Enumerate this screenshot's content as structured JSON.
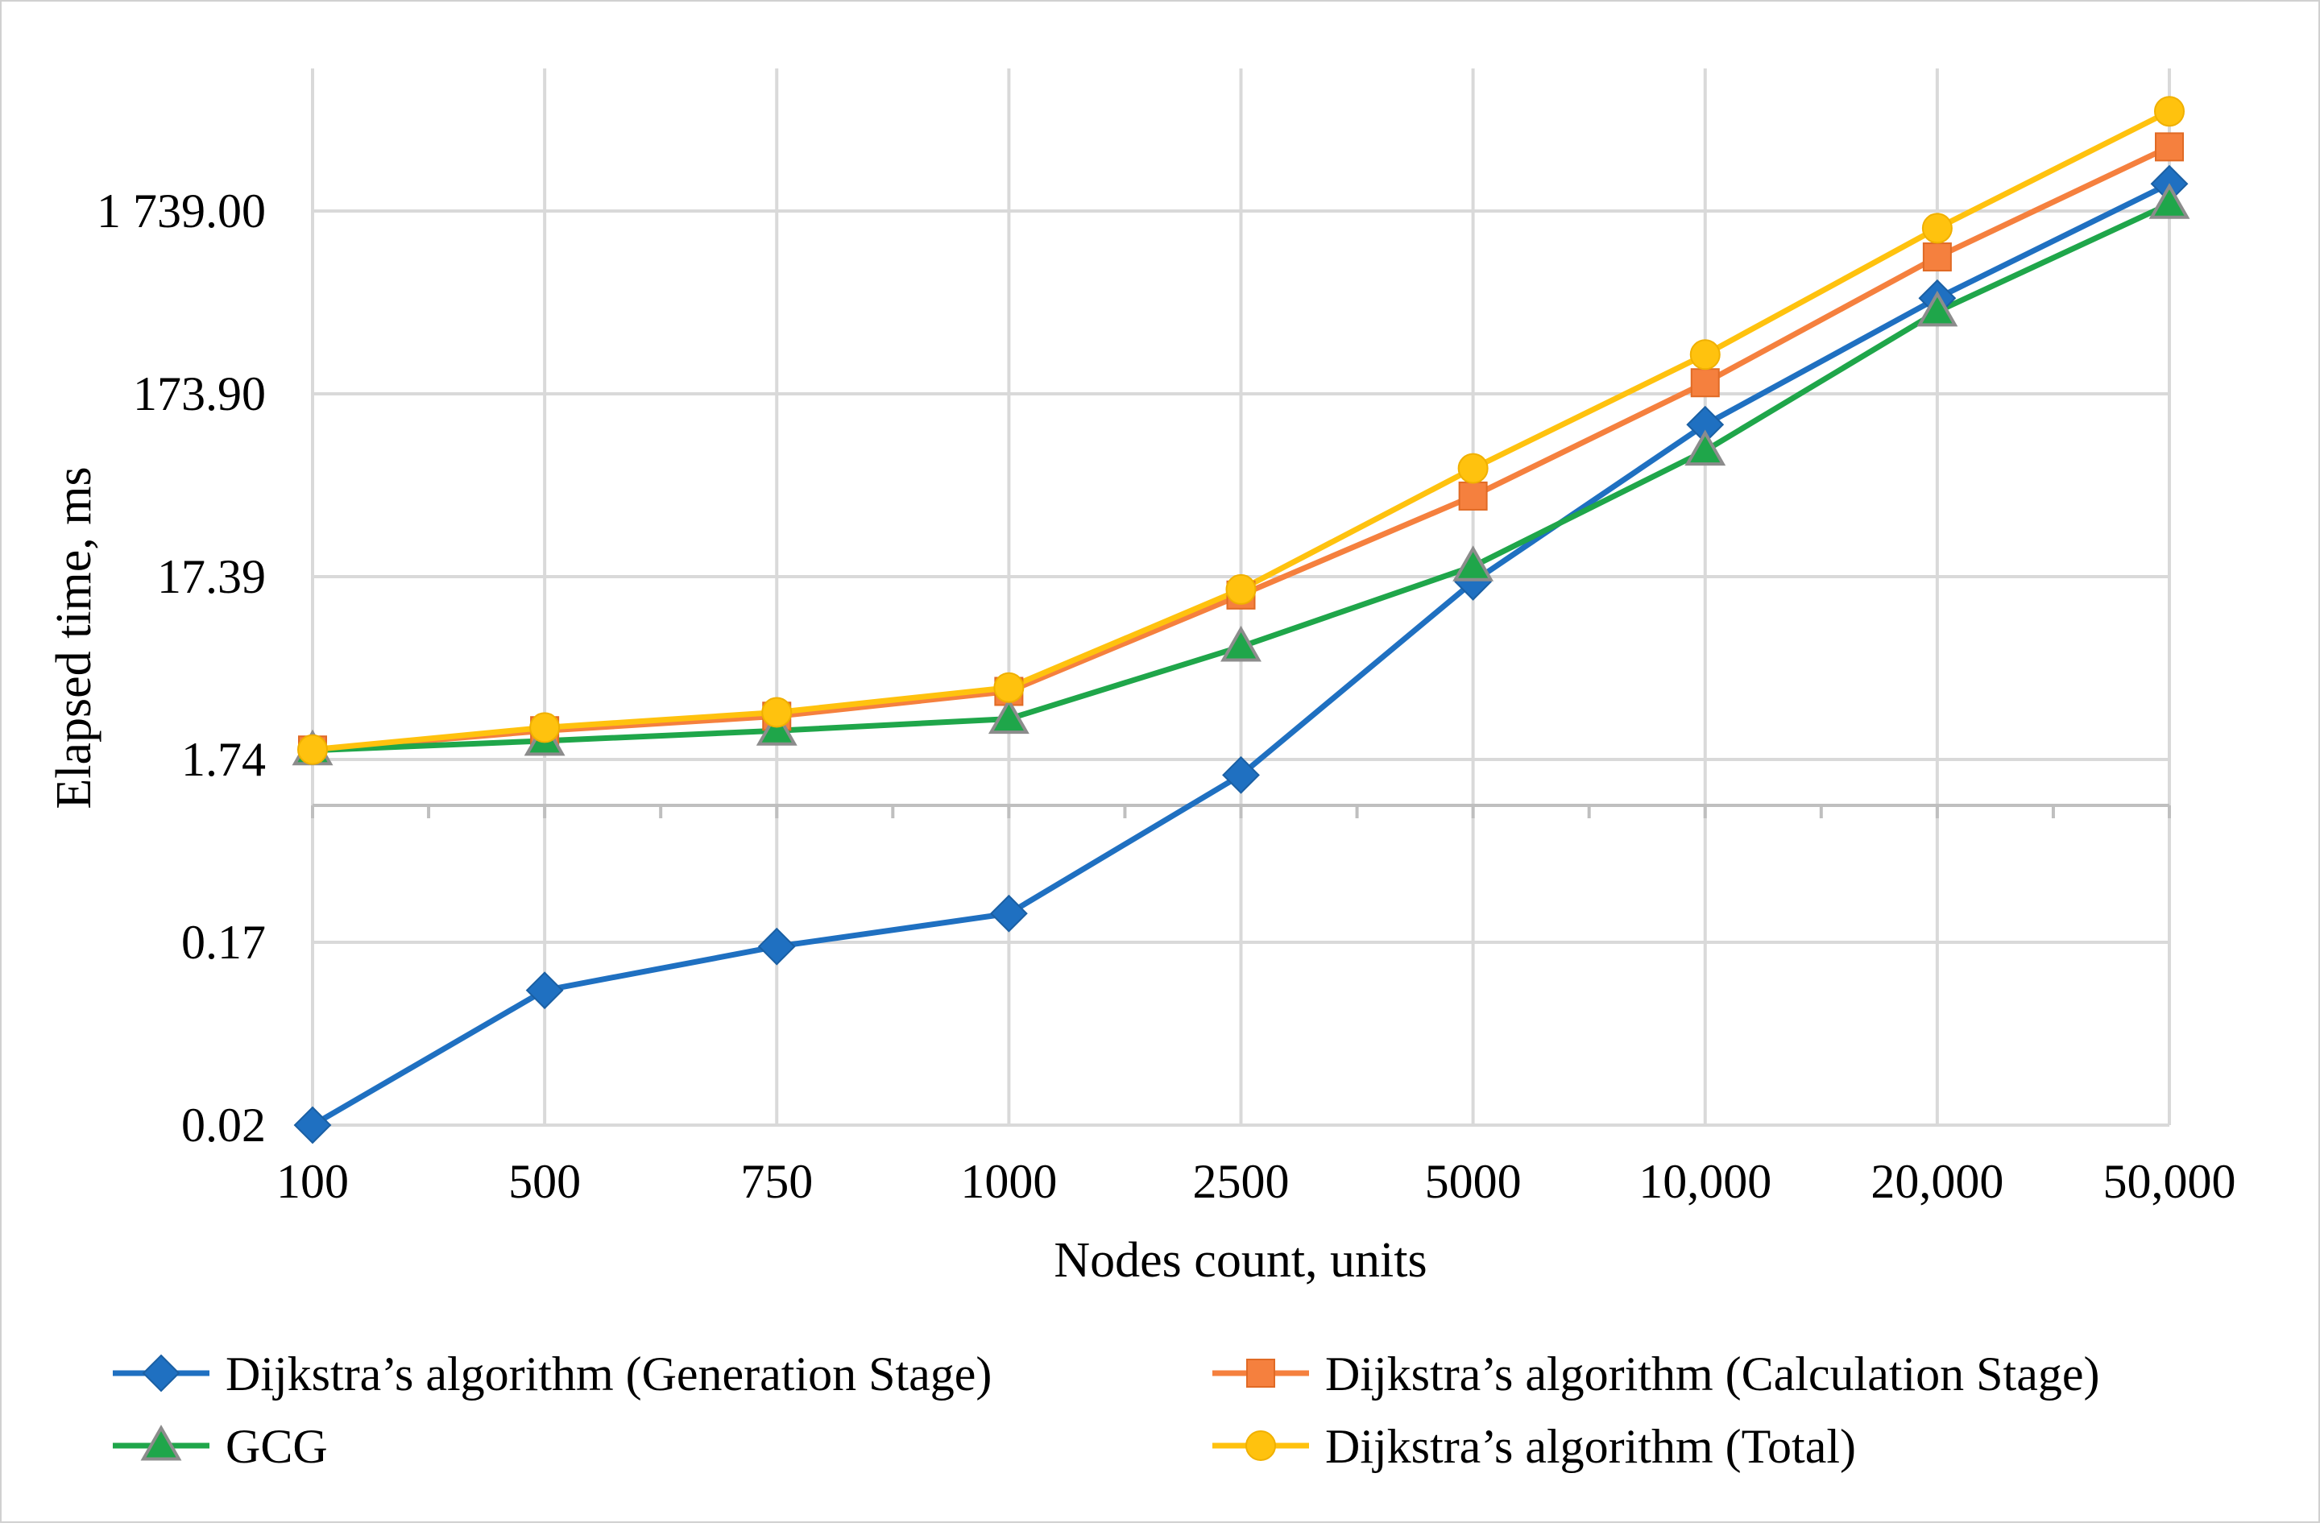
{
  "chart_data": {
    "type": "line",
    "title": "",
    "xlabel": "Nodes count, units",
    "ylabel": "Elapsed time, ms",
    "y_scale": "log",
    "categories": [
      "100",
      "500",
      "750",
      "1000",
      "2500",
      "5000",
      "10,000",
      "20,000",
      "50,000"
    ],
    "yticks": [
      {
        "value": 0.0174,
        "label": "0.02"
      },
      {
        "value": 0.174,
        "label": "0.17"
      },
      {
        "value": 1.74,
        "label": "1.74"
      },
      {
        "value": 17.39,
        "label": "17.39"
      },
      {
        "value": 173.9,
        "label": "173.90"
      },
      {
        "value": 1739.0,
        "label": "1 739.00"
      }
    ],
    "ylim": [
      0.0174,
      8700
    ],
    "grid": true,
    "legend_position": "bottom",
    "series": [
      {
        "name": "Dijkstra’s algorithm (Generation Stage)",
        "color": "#1F70C1",
        "marker": "diamond",
        "values": [
          0.0174,
          0.095,
          0.165,
          0.25,
          1.43,
          16.3,
          118.0,
          580.0,
          2450.0
        ]
      },
      {
        "name": "Dijkstra’s algorithm (Calculation Stage)",
        "color": "#F5803E",
        "marker": "square",
        "values": [
          1.96,
          2.5,
          3.0,
          4.1,
          13.8,
          48.0,
          200.0,
          975.0,
          3900.0
        ]
      },
      {
        "name": "GCG",
        "color": "#1FA64A",
        "marker": "triangle",
        "values": [
          1.95,
          2.2,
          2.5,
          2.9,
          7.2,
          19.8,
          85.0,
          490.0,
          1900.0
        ]
      },
      {
        "name": "Dijkstra’s algorithm (Total)",
        "color": "#FFC20E",
        "marker": "circle",
        "values": [
          1.97,
          2.6,
          3.15,
          4.3,
          14.8,
          68.0,
          285.0,
          1400.0,
          6100.0
        ]
      }
    ]
  }
}
